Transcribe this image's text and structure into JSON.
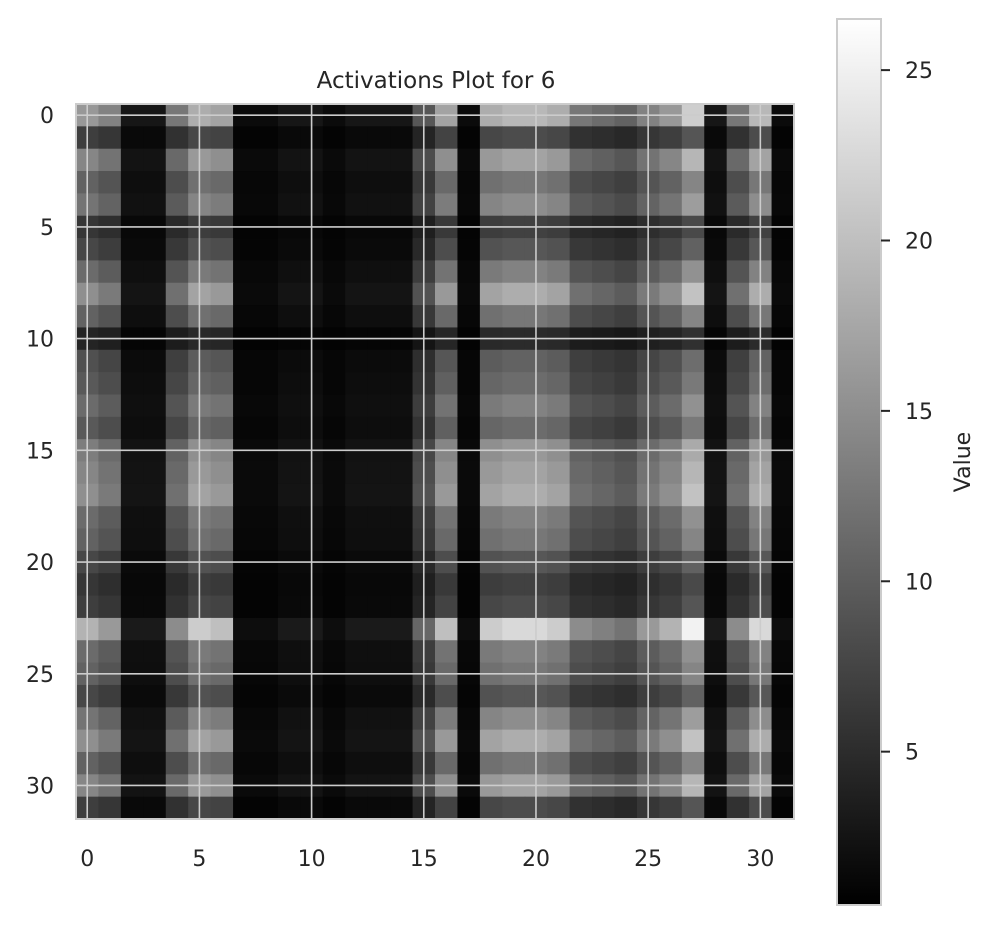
{
  "chart_data": {
    "type": "heatmap",
    "title": "Activations Plot for 6",
    "rows": 32,
    "cols": 32,
    "colormap": "gray",
    "value_range": [
      0.5,
      26.5
    ],
    "x_ticks": [
      0,
      5,
      10,
      15,
      20,
      25,
      30
    ],
    "y_ticks": [
      0,
      5,
      10,
      15,
      20,
      25,
      30
    ],
    "grid": true,
    "colorbar": {
      "label": "Value",
      "ticks": [
        5,
        10,
        15,
        20,
        25
      ],
      "range": [
        0.5,
        26.5
      ]
    },
    "row_factors": [
      0.85,
      0.35,
      0.75,
      0.55,
      0.65,
      0.3,
      0.4,
      0.6,
      0.8,
      0.55,
      0.2,
      0.45,
      0.5,
      0.6,
      0.5,
      0.7,
      0.75,
      0.8,
      0.6,
      0.55,
      0.4,
      0.3,
      0.35,
      1.0,
      0.6,
      0.55,
      0.4,
      0.65,
      0.8,
      0.55,
      0.75,
      0.35
    ],
    "col_factors": [
      0.7,
      0.6,
      0.1,
      0.1,
      0.55,
      0.8,
      0.75,
      0.05,
      0.05,
      0.1,
      0.1,
      0.05,
      0.1,
      0.1,
      0.1,
      0.4,
      0.75,
      0.05,
      0.8,
      0.85,
      0.85,
      0.8,
      0.55,
      0.5,
      0.45,
      0.6,
      0.7,
      0.95,
      0.1,
      0.55,
      0.85,
      0.05
    ]
  }
}
